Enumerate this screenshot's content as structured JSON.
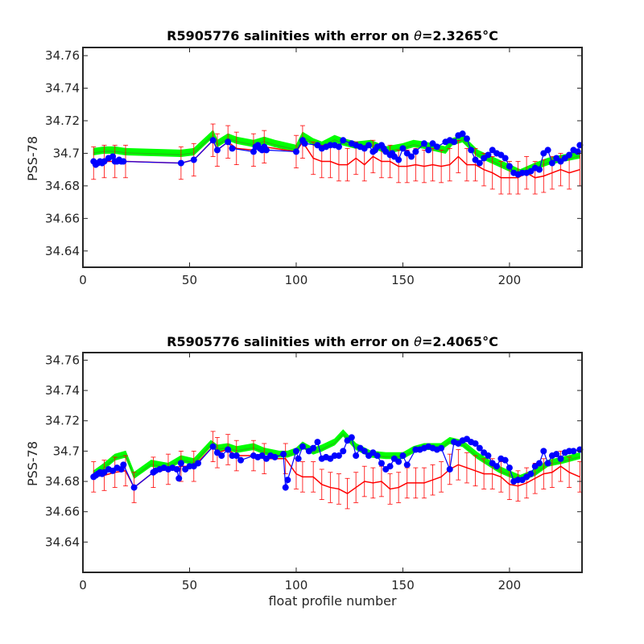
{
  "colors": {
    "mapped": "#00ff00",
    "mapped_dark": "#2f9e1a",
    "calibrated": "#0000ff",
    "uncalibrated": "#ff0000",
    "axes": "#262626"
  },
  "chart_data": [
    {
      "type": "line",
      "title_prefix": "R5905776 salinities with error on ",
      "title_theta": "θ",
      "title_value": "=2.3265",
      "title_unit": "°C",
      "xlabel": "",
      "ylabel": "PSS-78",
      "xlim": [
        0,
        234
      ],
      "ylim": [
        34.63,
        34.765
      ],
      "xticks": [
        0,
        50,
        100,
        150,
        200
      ],
      "yticks": [
        34.64,
        34.66,
        34.68,
        34.7,
        34.72,
        34.74,
        34.76
      ],
      "ytick_labels": [
        "34.64",
        "34.66",
        "34.68",
        "34.7",
        "34.72",
        "34.74",
        "34.76"
      ],
      "series": [
        {
          "role": "mapped",
          "x": [
            5,
            10,
            15,
            20,
            46,
            52,
            61,
            63,
            68,
            72,
            80,
            85,
            90,
            100,
            103,
            108,
            112,
            118,
            122,
            128,
            135,
            142,
            150,
            155,
            160,
            170,
            173,
            178,
            185,
            195,
            205,
            212,
            218,
            225,
            233
          ],
          "y": [
            34.701,
            34.702,
            34.702,
            34.701,
            34.7,
            34.701,
            34.712,
            34.706,
            34.71,
            34.708,
            34.706,
            34.708,
            34.706,
            34.703,
            34.711,
            34.707,
            34.705,
            34.709,
            34.707,
            34.705,
            34.706,
            34.702,
            34.704,
            34.706,
            34.705,
            34.702,
            34.707,
            34.709,
            34.7,
            34.694,
            34.688,
            34.692,
            34.695,
            34.697,
            34.699
          ],
          "err": 0.002
        },
        {
          "role": "calibrated",
          "x": [
            5,
            6,
            7,
            8,
            9,
            10,
            12,
            14,
            15,
            16,
            17,
            18,
            19,
            46,
            52,
            61,
            63,
            68,
            70,
            80,
            81,
            82,
            83,
            84,
            85,
            86,
            100,
            103,
            104,
            110,
            112,
            114,
            116,
            118,
            120,
            122,
            126,
            128,
            130,
            132,
            134,
            136,
            137,
            138,
            140,
            141,
            142,
            144,
            145,
            146,
            148,
            150,
            152,
            154,
            156,
            160,
            162,
            164,
            166,
            170,
            172,
            174,
            176,
            178,
            180,
            182,
            184,
            186,
            188,
            190,
            192,
            194,
            196,
            198,
            200,
            202,
            204,
            206,
            208,
            210,
            212,
            214,
            216,
            218,
            220,
            222,
            224,
            226,
            228,
            230,
            232,
            233
          ],
          "y": [
            34.695,
            34.693,
            34.694,
            34.695,
            34.694,
            34.695,
            34.697,
            34.698,
            34.695,
            34.695,
            34.696,
            34.695,
            34.695,
            34.694,
            34.696,
            34.708,
            34.702,
            34.707,
            34.703,
            34.701,
            34.704,
            34.705,
            34.703,
            34.702,
            34.704,
            34.702,
            34.701,
            34.708,
            34.706,
            34.705,
            34.703,
            34.704,
            34.705,
            34.705,
            34.704,
            34.708,
            34.706,
            34.705,
            34.704,
            34.703,
            34.705,
            34.701,
            34.702,
            34.704,
            34.705,
            34.703,
            34.701,
            34.699,
            34.7,
            34.698,
            34.696,
            34.703,
            34.7,
            34.698,
            34.701,
            34.706,
            34.702,
            34.706,
            34.704,
            34.707,
            34.708,
            34.707,
            34.711,
            34.712,
            34.709,
            34.702,
            34.696,
            34.694,
            34.697,
            34.699,
            34.702,
            34.7,
            34.699,
            34.697,
            34.692,
            34.688,
            34.687,
            34.688,
            34.688,
            34.689,
            34.691,
            34.69,
            34.7,
            34.702,
            34.694,
            34.697,
            34.695,
            34.697,
            34.699,
            34.702,
            34.701,
            34.705
          ]
        },
        {
          "role": "uncalibrated",
          "x": [
            5,
            10,
            15,
            20,
            46,
            52,
            61,
            63,
            68,
            72,
            80,
            85,
            100,
            103,
            108,
            112,
            116,
            120,
            124,
            128,
            132,
            136,
            140,
            144,
            148,
            152,
            156,
            160,
            164,
            168,
            172,
            176,
            180,
            184,
            188,
            192,
            196,
            200,
            204,
            208,
            212,
            216,
            220,
            224,
            228,
            233
          ],
          "y": [
            34.694,
            34.695,
            34.695,
            34.695,
            34.694,
            34.696,
            34.708,
            34.702,
            34.707,
            34.703,
            34.702,
            34.704,
            34.701,
            34.707,
            34.697,
            34.695,
            34.695,
            34.693,
            34.693,
            34.697,
            34.693,
            34.698,
            34.695,
            34.695,
            34.692,
            34.692,
            34.693,
            34.692,
            34.693,
            34.692,
            34.693,
            34.698,
            34.693,
            34.693,
            34.69,
            34.688,
            34.685,
            34.685,
            34.685,
            34.688,
            34.685,
            34.686,
            34.688,
            34.69,
            34.688,
            34.69
          ],
          "err": 0.01
        }
      ]
    },
    {
      "type": "line",
      "title_prefix": "R5905776 salinities with error on ",
      "title_theta": "θ",
      "title_value": "=2.4065",
      "title_unit": "°C",
      "xlabel": "float profile number",
      "ylabel": "PSS-78",
      "xlim": [
        0,
        234
      ],
      "ylim": [
        34.62,
        34.765
      ],
      "xticks": [
        0,
        50,
        100,
        150,
        200
      ],
      "yticks": [
        34.64,
        34.66,
        34.68,
        34.7,
        34.72,
        34.74,
        34.76
      ],
      "ytick_labels": [
        "34.64",
        "34.66",
        "34.68",
        "34.7",
        "34.72",
        "34.74",
        "34.76"
      ],
      "series": [
        {
          "role": "mapped",
          "x": [
            5,
            10,
            15,
            20,
            24,
            32,
            40,
            46,
            52,
            60,
            63,
            68,
            72,
            80,
            85,
            92,
            96,
            100,
            103,
            108,
            112,
            118,
            122,
            128,
            135,
            142,
            150,
            155,
            160,
            168,
            172,
            178,
            185,
            195,
            205,
            212,
            218,
            225,
            233
          ],
          "y": [
            34.685,
            34.69,
            34.696,
            34.698,
            34.684,
            34.692,
            34.69,
            34.695,
            34.693,
            34.705,
            34.702,
            34.703,
            34.701,
            34.703,
            34.7,
            34.698,
            34.698,
            34.7,
            34.704,
            34.7,
            34.702,
            34.706,
            34.712,
            34.703,
            34.698,
            34.697,
            34.697,
            34.701,
            34.703,
            34.703,
            34.707,
            34.705,
            34.697,
            34.688,
            34.682,
            34.686,
            34.692,
            34.694,
            34.697
          ],
          "err": 0.002
        },
        {
          "role": "calibrated",
          "x": [
            5,
            6,
            7,
            8,
            9,
            10,
            12,
            14,
            16,
            18,
            19,
            24,
            33,
            34,
            36,
            38,
            40,
            42,
            44,
            45,
            46,
            48,
            50,
            52,
            54,
            61,
            63,
            65,
            68,
            70,
            72,
            74,
            80,
            82,
            84,
            86,
            88,
            90,
            94,
            95,
            96,
            100,
            101,
            103,
            106,
            108,
            110,
            112,
            114,
            116,
            118,
            120,
            122,
            124,
            126,
            128,
            130,
            132,
            134,
            136,
            138,
            140,
            142,
            144,
            146,
            148,
            150,
            152,
            156,
            158,
            160,
            162,
            164,
            166,
            168,
            172,
            174,
            176,
            178,
            180,
            182,
            184,
            186,
            188,
            190,
            192,
            194,
            196,
            198,
            200,
            202,
            204,
            206,
            208,
            210,
            212,
            214,
            216,
            218,
            220,
            222,
            224,
            226,
            228,
            230,
            233
          ],
          "y": [
            34.683,
            34.684,
            34.685,
            34.686,
            34.685,
            34.686,
            34.688,
            34.687,
            34.689,
            34.688,
            34.691,
            34.676,
            34.686,
            34.687,
            34.688,
            34.689,
            34.688,
            34.689,
            34.688,
            34.682,
            34.692,
            34.688,
            34.69,
            34.69,
            34.692,
            34.703,
            34.699,
            34.697,
            34.701,
            34.697,
            34.697,
            34.694,
            34.697,
            34.696,
            34.697,
            34.695,
            34.697,
            34.696,
            34.698,
            34.676,
            34.681,
            34.7,
            34.695,
            34.703,
            34.7,
            34.702,
            34.706,
            34.695,
            34.696,
            34.695,
            34.697,
            34.697,
            34.7,
            34.707,
            34.709,
            34.697,
            34.702,
            34.7,
            34.697,
            34.699,
            34.697,
            34.692,
            34.688,
            34.69,
            34.695,
            34.693,
            34.697,
            34.691,
            34.701,
            34.701,
            34.702,
            34.703,
            34.702,
            34.701,
            34.702,
            34.688,
            34.706,
            34.705,
            34.707,
            34.708,
            34.706,
            34.705,
            34.702,
            34.699,
            34.697,
            34.692,
            34.69,
            34.695,
            34.694,
            34.689,
            34.68,
            34.681,
            34.681,
            34.683,
            34.685,
            34.69,
            34.692,
            34.7,
            34.692,
            34.697,
            34.698,
            34.695,
            34.699,
            34.7,
            34.7,
            34.701
          ]
        },
        {
          "role": "uncalibrated",
          "x": [
            5,
            10,
            15,
            20,
            24,
            33,
            40,
            46,
            52,
            61,
            63,
            68,
            72,
            80,
            85,
            95,
            100,
            103,
            108,
            112,
            116,
            120,
            124,
            128,
            132,
            136,
            140,
            144,
            148,
            152,
            156,
            160,
            164,
            168,
            172,
            176,
            180,
            184,
            188,
            192,
            196,
            200,
            204,
            208,
            212,
            216,
            220,
            224,
            228,
            233
          ],
          "y": [
            34.683,
            34.684,
            34.686,
            34.687,
            34.676,
            34.686,
            34.688,
            34.69,
            34.69,
            34.703,
            34.699,
            34.701,
            34.697,
            34.697,
            34.695,
            34.695,
            34.685,
            34.683,
            34.683,
            34.678,
            34.676,
            34.675,
            34.672,
            34.676,
            34.68,
            34.679,
            34.68,
            34.675,
            34.676,
            34.679,
            34.679,
            34.679,
            34.681,
            34.683,
            34.688,
            34.691,
            34.689,
            34.687,
            34.685,
            34.685,
            34.683,
            34.678,
            34.677,
            34.679,
            34.682,
            34.685,
            34.686,
            34.69,
            34.686,
            34.683
          ],
          "err": 0.01
        }
      ]
    }
  ]
}
